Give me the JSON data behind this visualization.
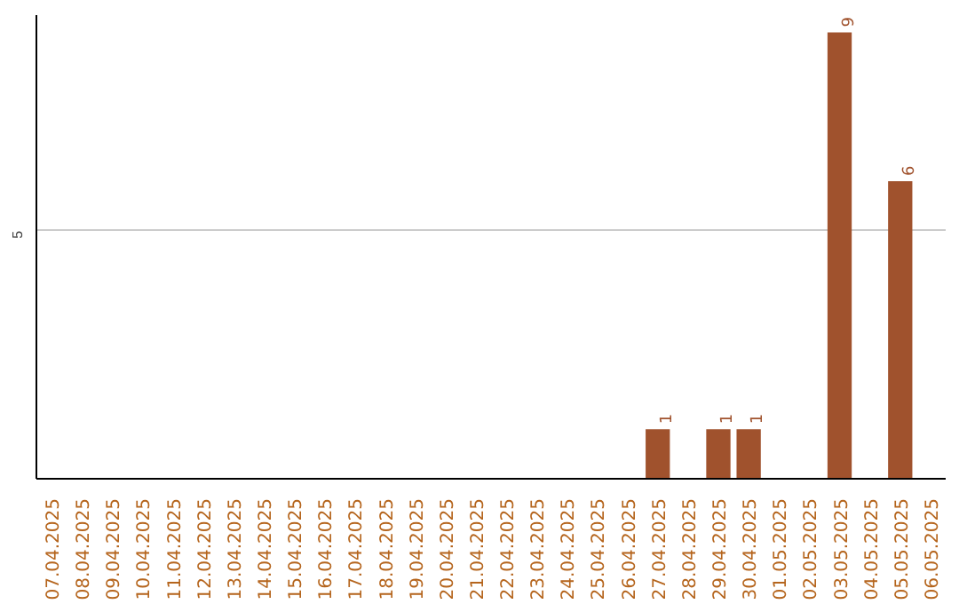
{
  "chart_data": {
    "type": "bar",
    "categories": [
      "07.04.2025",
      "08.04.2025",
      "09.04.2025",
      "10.04.2025",
      "11.04.2025",
      "12.04.2025",
      "13.04.2025",
      "14.04.2025",
      "15.04.2025",
      "16.04.2025",
      "17.04.2025",
      "18.04.2025",
      "19.04.2025",
      "20.04.2025",
      "21.04.2025",
      "22.04.2025",
      "23.04.2025",
      "24.04.2025",
      "25.04.2025",
      "26.04.2025",
      "27.04.2025",
      "28.04.2025",
      "29.04.2025",
      "30.04.2025",
      "01.05.2025",
      "02.05.2025",
      "03.05.2025",
      "04.05.2025",
      "05.05.2025",
      "06.05.2025"
    ],
    "values": [
      null,
      null,
      null,
      null,
      null,
      null,
      null,
      null,
      null,
      null,
      null,
      null,
      null,
      null,
      null,
      null,
      null,
      null,
      null,
      null,
      1,
      null,
      1,
      1,
      null,
      null,
      9,
      null,
      6,
      null
    ],
    "data_labels": true,
    "color": "#a0522d",
    "ylim": [
      0,
      9.35
    ],
    "yticks": [
      5
    ],
    "grid": "y"
  }
}
